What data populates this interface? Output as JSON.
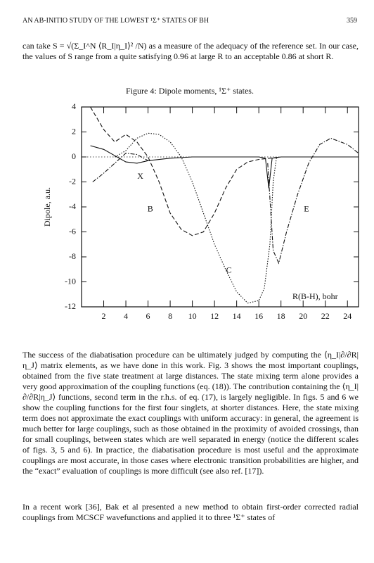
{
  "header": {
    "title": "AN AB-INITIO STUDY OF THE LOWEST ¹Σ⁺ STATES OF BH",
    "page": "359"
  },
  "paragraphs": [
    "can take S = √(Σ_I^N ⟨R_I|η_I⟩² /N) as a measure of the adequacy of the reference set. In our case, the values of S range from a quite satisfying 0.96 at large R to an acceptable 0.86 at short R.",
    "The success of the diabatisation procedure can be ultimately judged by computing the ⟨η_I|∂/∂R|η_J⟩ matrix elements, as we have done in this work. Fig. 3 shows the most important couplings, obtained from the five state treatment at large distances. The state mixing term alone provides a very good approximation of the coupling functions (eq. (18)). The contribution containing the ⟨η_I|∂/∂R|η_J⟩ functions, second term in the r.h.s. of eq. (17), is largely negligible. In figs. 5 and 6 we show the coupling functions for the first four singlets, at shorter distances. Here, the state mixing term does not approximate the exact couplings with uniform accuracy: in general, the agreement is much better for large couplings, such as those obtained in the proximity of avoided crossings, than for small couplings, between states which are well separated in energy (notice the different scales of figs. 3, 5 and 6). In practice, the diabatisation procedure is most useful and the approximate couplings are most accurate, in those cases where electronic transition probabilities are higher, and the “exact” evaluation of couplings is more difficult (see also ref. [17]).",
    "In a recent work [36], Bak et al presented a new method to obtain first-order corrected radial couplings from MCSCF wavefunctions and applied it to three ¹Σ⁺ states of"
  ],
  "chart_data": {
    "type": "line",
    "title": "Figure 4: Dipole moments, ¹Σ⁺ states.",
    "x_label": "R(B-H), bohr",
    "y_label": "Dipole, a.u.",
    "xlim": [
      0,
      25
    ],
    "ylim": [
      -12,
      4
    ],
    "xticks": [
      2,
      4,
      6,
      8,
      10,
      12,
      14,
      16,
      18,
      20,
      22,
      24
    ],
    "yticks": [
      -12,
      -10,
      -8,
      -6,
      -4,
      -2,
      0,
      2,
      4
    ],
    "reference_line": 0,
    "series": [
      {
        "style": "solid",
        "color": "#111111",
        "x": [
          0.8,
          2,
          3,
          4,
          5,
          6,
          8,
          10,
          14,
          16,
          16.6,
          16.9,
          17.2,
          18,
          25
        ],
        "values": [
          0.9,
          0.6,
          0.1,
          -0.4,
          -0.5,
          -0.3,
          -0.1,
          0,
          0,
          0,
          -0.1,
          -2.5,
          -0.1,
          0,
          0
        ]
      },
      {
        "style": "dashed",
        "color": "#111111",
        "x": [
          0.8,
          2,
          3,
          4,
          5,
          6,
          7,
          8,
          9,
          10,
          11,
          12,
          13,
          14,
          15,
          16,
          17,
          18
        ],
        "values": [
          4,
          2.2,
          1.2,
          1.8,
          1.2,
          0,
          -2,
          -4.5,
          -5.8,
          -6.3,
          -6,
          -4.5,
          -2.5,
          -1,
          -0.4,
          -0.2,
          -0.1,
          0
        ]
      },
      {
        "style": "dotted",
        "color": "#111111",
        "x": [
          3,
          4,
          5,
          6,
          7,
          8,
          9,
          10,
          11,
          12,
          13,
          14,
          15,
          16,
          16.5,
          17,
          17.3,
          17.6
        ],
        "values": [
          0,
          0.5,
          1.5,
          1.9,
          1.8,
          1.2,
          0,
          -2,
          -4.5,
          -7,
          -9,
          -10.8,
          -11.7,
          -11.5,
          -10.5,
          -7,
          -2,
          0
        ]
      },
      {
        "style": "dashdot",
        "color": "#111111",
        "x": [
          1,
          2,
          3,
          4,
          5,
          6
        ],
        "values": [
          -2,
          -1.3,
          -0.5,
          0.3,
          0.2,
          -0.3
        ]
      },
      {
        "style": "dashdot",
        "color": "#111111",
        "x": [
          16.8,
          17.3,
          17.8,
          18.5,
          19.5,
          20.5,
          21.5,
          22.5,
          24,
          25
        ],
        "values": [
          -0.5,
          -7.5,
          -8.5,
          -6,
          -3,
          -0.5,
          1,
          1.5,
          1,
          0.3
        ]
      }
    ],
    "annotations": [
      {
        "text": "X",
        "x": 5.3,
        "y": -1.6
      },
      {
        "text": "B",
        "x": 6.2,
        "y": -4.2
      },
      {
        "text": "C",
        "x": 13.3,
        "y": -9.1
      },
      {
        "text": "E",
        "x": 20.3,
        "y": -4.2
      }
    ]
  }
}
